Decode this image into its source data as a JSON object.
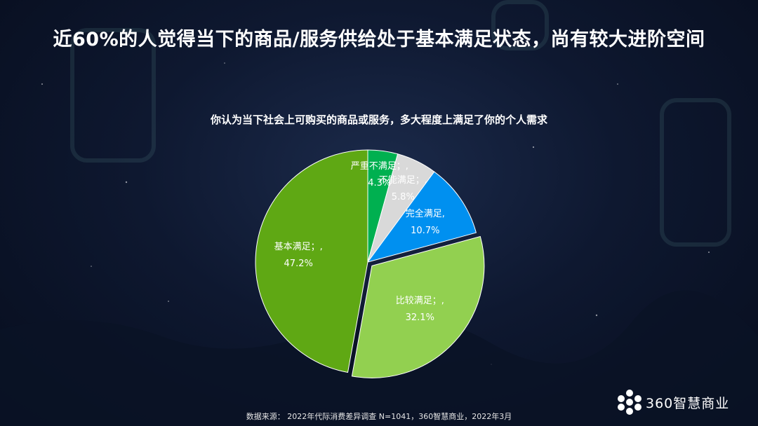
{
  "slide": {
    "title": "近60%的人觉得当下的商品/服务供给处于基本满足状态，尚有较大进阶空间",
    "source": "数据来源： 2022年代际消费差异调查 N=1041，360智慧商业，2022年3月",
    "logo_text": "360智慧商业"
  },
  "chart_data": {
    "type": "pie",
    "title": "你认为当下社会上可购买的商品或服务，多大程度上满足了你的个人需求",
    "unit": "%",
    "slices": [
      {
        "label": "严重不满足；,",
        "value": 4.3,
        "value_text": "4.3%",
        "color": "#00b050"
      },
      {
        "label": "不能满足；,",
        "value": 5.8,
        "value_text": "5.8%",
        "color": "#d9d9d9"
      },
      {
        "label": "完全满足,",
        "value": 10.7,
        "value_text": "10.7%",
        "color": "#0090f0"
      },
      {
        "label": "比较满足；,",
        "value": 32.1,
        "value_text": "32.1%",
        "color": "#92d050"
      },
      {
        "label": "基本满足；,",
        "value": 47.2,
        "value_text": "47.2%",
        "color": "#5fa814"
      }
    ]
  }
}
